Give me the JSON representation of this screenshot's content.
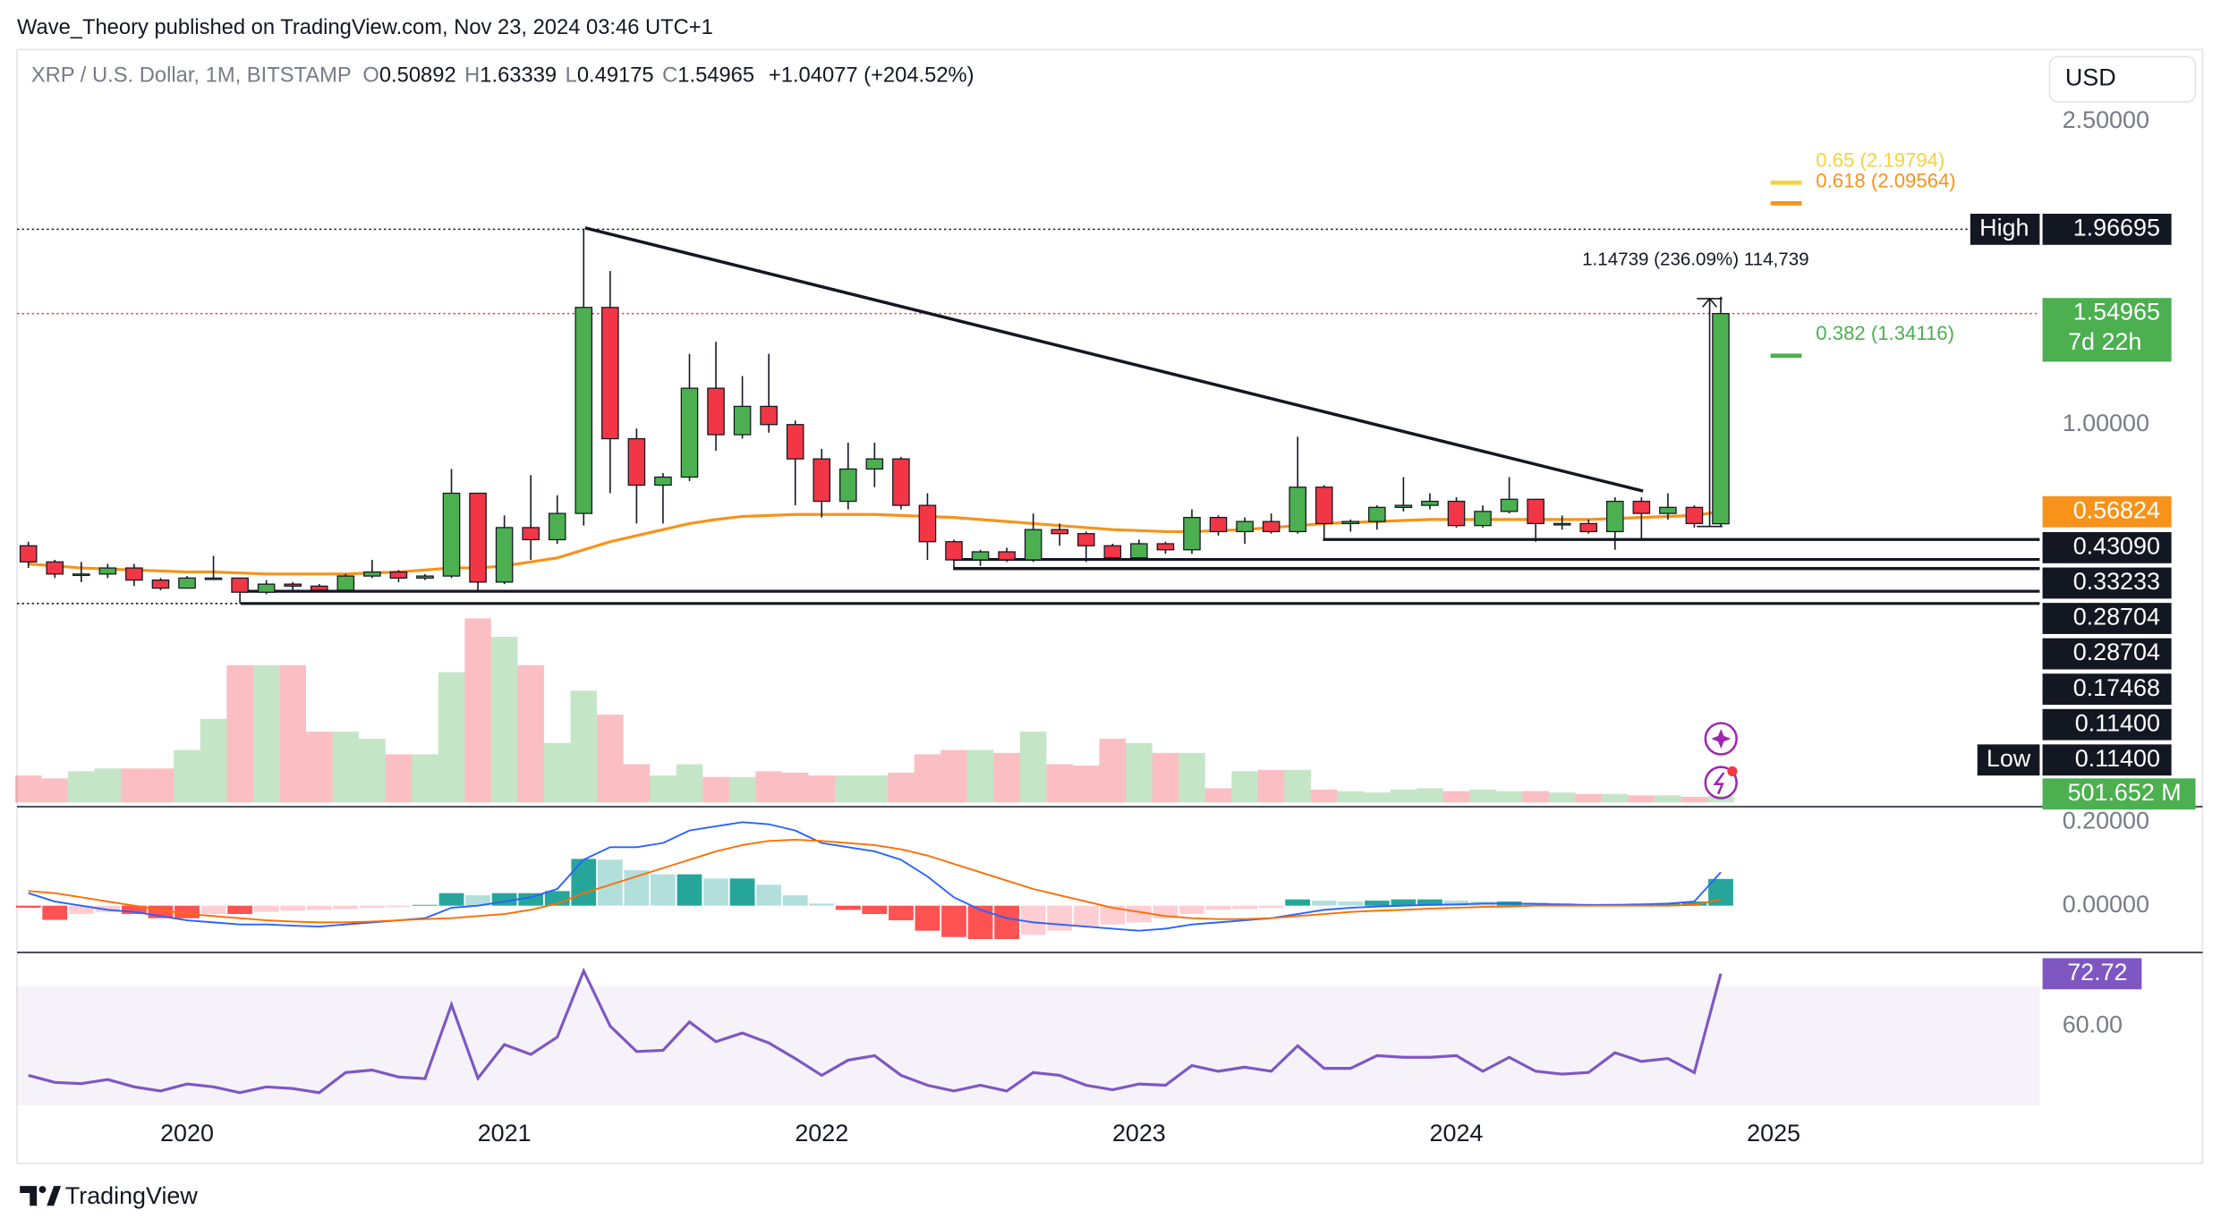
{
  "header": "Wave_Theory published on TradingView.com, Nov 23, 2024 03:46 UTC+1",
  "footer": "TradingView",
  "chart_data": {
    "type": "candlestick",
    "symbol": "XRP / U.S. Dollar, 1M, BITSTAMP",
    "legend": [
      {
        "key": "O",
        "value": 0.50892
      },
      {
        "key": "H",
        "value": 1.63339
      },
      {
        "key": "L",
        "value": 0.49175
      },
      {
        "key": "C",
        "value": 1.54965
      }
    ],
    "change": "+1.04077 (+204.52%)",
    "currency": "USD",
    "up_color": "#4caf50",
    "down_color": "#f23645",
    "xlim": [
      -0.43,
      76.06
    ],
    "xticks": [
      {
        "value": 6,
        "label": "2020"
      },
      {
        "value": 18,
        "label": "2021"
      },
      {
        "value": 30,
        "label": "2022"
      },
      {
        "value": 42,
        "label": "2023"
      },
      {
        "value": 54,
        "label": "2024"
      },
      {
        "value": 66,
        "label": "2025"
      }
    ],
    "ylim": [
      -0.892,
      2.857
    ],
    "yticks": [
      {
        "value": 1,
        "label": "1.00000"
      },
      {
        "value": 2.5,
        "label": "2.50000"
      }
    ],
    "open": [
      0.4,
      0.32,
      0.26,
      0.26,
      0.29,
      0.23,
      0.19,
      0.24,
      0.24,
      0.17,
      0.21,
      0.2,
      0.18,
      0.25,
      0.27,
      0.24,
      0.25,
      0.66,
      0.22,
      0.49,
      0.43,
      0.56,
      1.58,
      0.93,
      0.7,
      0.74,
      1.18,
      0.95,
      1.09,
      1.0,
      0.83,
      0.62,
      0.78,
      0.83,
      0.6,
      0.42,
      0.33,
      0.37,
      0.33,
      0.48,
      0.46,
      0.4,
      0.34,
      0.41,
      0.38,
      0.54,
      0.47,
      0.52,
      0.47,
      0.69,
      0.51,
      0.52,
      0.59,
      0.6,
      0.62,
      0.5,
      0.57,
      0.63,
      0.51,
      0.51,
      0.47,
      0.62,
      0.56,
      0.59,
      0.50892
    ],
    "high": [
      0.42,
      0.33,
      0.32,
      0.31,
      0.31,
      0.24,
      0.25,
      0.35,
      0.24,
      0.23,
      0.22,
      0.21,
      0.26,
      0.33,
      0.28,
      0.26,
      0.78,
      0.66,
      0.55,
      0.75,
      0.65,
      1.96695,
      1.76,
      0.98,
      0.76,
      1.35,
      1.41,
      1.24,
      1.35,
      1.02,
      0.88,
      0.91,
      0.91,
      0.84,
      0.66,
      0.43,
      0.38,
      0.39,
      0.56,
      0.51,
      0.47,
      0.41,
      0.43,
      0.42,
      0.58,
      0.55,
      0.54,
      0.56,
      0.94,
      0.7,
      0.53,
      0.6,
      0.74,
      0.66,
      0.64,
      0.6,
      0.74,
      0.63,
      0.55,
      0.53,
      0.64,
      0.64,
      0.66,
      0.6,
      1.63339
    ],
    "low": [
      0.29,
      0.24,
      0.22,
      0.24,
      0.2,
      0.18,
      0.19,
      0.23,
      0.114,
      0.16,
      0.18,
      0.17,
      0.17,
      0.24,
      0.22,
      0.23,
      0.24,
      0.17468,
      0.21,
      0.33,
      0.41,
      0.5,
      0.66,
      0.51,
      0.51,
      0.72,
      0.87,
      0.93,
      0.96,
      0.6,
      0.54,
      0.58,
      0.69,
      0.58,
      0.33,
      0.28704,
      0.3,
      0.32,
      0.32,
      0.4,
      0.32,
      0.33,
      0.33,
      0.36,
      0.36,
      0.45,
      0.41,
      0.46,
      0.46,
      0.4309,
      0.47,
      0.48,
      0.57,
      0.58,
      0.49,
      0.49,
      0.56,
      0.42,
      0.48,
      0.46,
      0.38,
      0.43,
      0.53,
      0.49,
      0.49175
    ],
    "close": [
      0.32,
      0.26,
      0.26,
      0.29,
      0.23,
      0.19,
      0.24,
      0.24,
      0.17,
      0.21,
      0.2,
      0.18,
      0.25,
      0.27,
      0.24,
      0.25,
      0.66,
      0.22,
      0.49,
      0.43,
      0.56,
      1.58,
      0.93,
      0.7,
      0.74,
      1.18,
      0.95,
      1.09,
      1.0,
      0.83,
      0.62,
      0.78,
      0.83,
      0.6,
      0.42,
      0.33,
      0.37,
      0.33,
      0.48,
      0.46,
      0.4,
      0.34,
      0.41,
      0.38,
      0.54,
      0.47,
      0.52,
      0.47,
      0.69,
      0.51,
      0.52,
      0.59,
      0.6,
      0.62,
      0.5,
      0.57,
      0.63,
      0.51,
      0.51,
      0.47,
      0.62,
      0.56,
      0.59,
      0.51,
      1.54965
    ],
    "ma": {
      "color": "#f7931a",
      "values": [
        0.31,
        0.3,
        0.29,
        0.285,
        0.28,
        0.275,
        0.27,
        0.27,
        0.265,
        0.26,
        0.26,
        0.26,
        0.26,
        0.265,
        0.27,
        0.28,
        0.29,
        0.29,
        0.3,
        0.32,
        0.34,
        0.38,
        0.42,
        0.45,
        0.48,
        0.51,
        0.53,
        0.545,
        0.55,
        0.555,
        0.555,
        0.555,
        0.555,
        0.55,
        0.545,
        0.54,
        0.53,
        0.52,
        0.51,
        0.5,
        0.49,
        0.48,
        0.475,
        0.47,
        0.47,
        0.475,
        0.48,
        0.49,
        0.5,
        0.51,
        0.515,
        0.52,
        0.525,
        0.53,
        0.53,
        0.53,
        0.53,
        0.53,
        0.53,
        0.53,
        0.535,
        0.54,
        0.545,
        0.55,
        0.56824
      ]
    },
    "high_label": {
      "name": "High",
      "value": 1.96695
    },
    "last_price": {
      "value": 1.54965,
      "countdown": "7d 22h",
      "color": "#4caf50",
      "line_color": "#f23645"
    },
    "levels": [
      {
        "value": 0.4309,
        "label": "0.43090"
      },
      {
        "value": 0.33233,
        "label": "0.33233"
      },
      {
        "value": 0.28704,
        "label": "0.28704"
      },
      {
        "value": 0.28704,
        "label": "0.28704"
      },
      {
        "value": 0.17468,
        "label": "0.17468"
      },
      {
        "value": 0.114,
        "label": "0.11400"
      },
      {
        "value": 0.114,
        "label": "0.11400",
        "name": "Low"
      }
    ],
    "fib": [
      {
        "label": "0.65 (2.19794)",
        "value": 2.19794,
        "color": "#f5d33d"
      },
      {
        "label": "0.618 (2.09564)",
        "value": 2.09564,
        "color": "#f7931a"
      },
      {
        "label": "0.382 (1.34116)",
        "value": 1.34116,
        "color": "#4caf50"
      }
    ],
    "measure": "1.14739 (236.09%) 114,739",
    "volume": {
      "ylim": [
        0,
        17000
      ],
      "up_color": "rgba(76,175,80,0.32)",
      "down_color": "rgba(242,54,69,0.32)",
      "last_label": "501.652 M",
      "label_color": "#4caf50",
      "values": [
        2153,
        1927,
        2493,
        2720,
        2720,
        2720,
        4193,
        6687,
        10993,
        10993,
        10993,
        5667,
        5667,
        5100,
        3853,
        3853,
        10427,
        14733,
        13260,
        10993,
        4760,
        8953,
        7027,
        3060,
        2153,
        3060,
        2040,
        2040,
        2493,
        2380,
        2153,
        2153,
        2153,
        2380,
        3853,
        4193,
        4193,
        3967,
        5667,
        3060,
        2947,
        5100,
        4760,
        3967,
        3967,
        1133,
        2493,
        2607,
        2607,
        1020,
        907,
        793,
        1020,
        1133,
        907,
        1020,
        907,
        907,
        793,
        680,
        680,
        567,
        567,
        453,
        501.652
      ]
    },
    "macd": {
      "ylim": [
        -0.112,
        0.237
      ],
      "yticks": [
        {
          "value": 0.2,
          "label": "0.20000"
        },
        {
          "value": 0,
          "label": "0.00000"
        }
      ],
      "hist_colors": [
        "#26a69a",
        "#b2dfdb",
        "#ff5252",
        "#ffcdd2"
      ],
      "macd_color": "#2962ff",
      "signal_color": "#ff6d00",
      "hist": [
        -0.005,
        -0.034,
        -0.02,
        -0.015,
        -0.02,
        -0.03,
        -0.03,
        -0.02,
        -0.02,
        -0.015,
        -0.012,
        -0.01,
        -0.008,
        -0.005,
        -0.003,
        0.002,
        0.03,
        0.025,
        0.03,
        0.03,
        0.035,
        0.112,
        0.11,
        0.085,
        0.075,
        0.075,
        0.065,
        0.065,
        0.05,
        0.025,
        0.005,
        -0.01,
        -0.02,
        -0.035,
        -0.06,
        -0.075,
        -0.08,
        -0.08,
        -0.07,
        -0.06,
        -0.05,
        -0.045,
        -0.04,
        -0.03,
        -0.02,
        -0.01,
        -0.008,
        -0.005,
        0.015,
        0.012,
        0.01,
        0.012,
        0.015,
        0.015,
        0.012,
        0.01,
        0.01,
        0.008,
        0.006,
        0.003,
        0.004,
        0.005,
        0.006,
        0.01,
        0.064
      ],
      "macd": [
        0.03,
        0.01,
        0.0,
        -0.01,
        -0.015,
        -0.025,
        -0.035,
        -0.04,
        -0.045,
        -0.045,
        -0.048,
        -0.05,
        -0.045,
        -0.04,
        -0.035,
        -0.03,
        -0.005,
        0.0,
        0.01,
        0.02,
        0.04,
        0.11,
        0.14,
        0.14,
        0.15,
        0.18,
        0.19,
        0.2,
        0.195,
        0.18,
        0.15,
        0.14,
        0.13,
        0.11,
        0.07,
        0.02,
        -0.01,
        -0.03,
        -0.04,
        -0.045,
        -0.05,
        -0.055,
        -0.06,
        -0.055,
        -0.045,
        -0.04,
        -0.035,
        -0.03,
        -0.02,
        -0.01,
        -0.005,
        -0.002,
        0.0,
        0.002,
        0.003,
        0.005,
        0.005,
        0.004,
        0.003,
        0.002,
        0.002,
        0.003,
        0.005,
        0.01,
        0.08
      ],
      "signal": [
        0.035,
        0.03,
        0.02,
        0.01,
        0.0,
        -0.01,
        -0.02,
        -0.025,
        -0.03,
        -0.035,
        -0.038,
        -0.04,
        -0.04,
        -0.038,
        -0.035,
        -0.032,
        -0.03,
        -0.025,
        -0.02,
        -0.01,
        0.005,
        0.03,
        0.05,
        0.07,
        0.09,
        0.11,
        0.13,
        0.145,
        0.155,
        0.158,
        0.155,
        0.15,
        0.145,
        0.135,
        0.12,
        0.1,
        0.08,
        0.06,
        0.04,
        0.025,
        0.01,
        -0.005,
        -0.015,
        -0.025,
        -0.03,
        -0.032,
        -0.032,
        -0.03,
        -0.025,
        -0.02,
        -0.015,
        -0.012,
        -0.01,
        -0.007,
        -0.005,
        -0.003,
        -0.002,
        0.0,
        0.0,
        0.0,
        0.0,
        0.0,
        0.0,
        0.002,
        0.015
      ]
    },
    "rsi": {
      "ylim": [
        27.3,
        77.9
      ],
      "yticks": [
        {
          "value": 60,
          "label": "60.00"
        }
      ],
      "color": "#7e57c2",
      "values": [
        48,
        46.3,
        46,
        47,
        45.2,
        44.2,
        45.9,
        45.2,
        43.8,
        45.2,
        44.8,
        43.8,
        48.7,
        49.3,
        47.6,
        47.2,
        65.2,
        47.3,
        55.5,
        53.1,
        57.3,
        73.4,
        60,
        53.8,
        54.1,
        61,
        56.2,
        58.3,
        55.9,
        52.1,
        48,
        51.7,
        52.8,
        48,
        45.6,
        44.2,
        45.6,
        44.2,
        48.7,
        48,
        45.6,
        44.5,
        45.9,
        45.6,
        50.4,
        49,
        50,
        49,
        55.2,
        49.7,
        49.7,
        52.8,
        52.4,
        52.4,
        52.8,
        49,
        52.4,
        49,
        48.3,
        48.7,
        53.5,
        51.4,
        52.1,
        48.7,
        72.72
      ]
    }
  }
}
